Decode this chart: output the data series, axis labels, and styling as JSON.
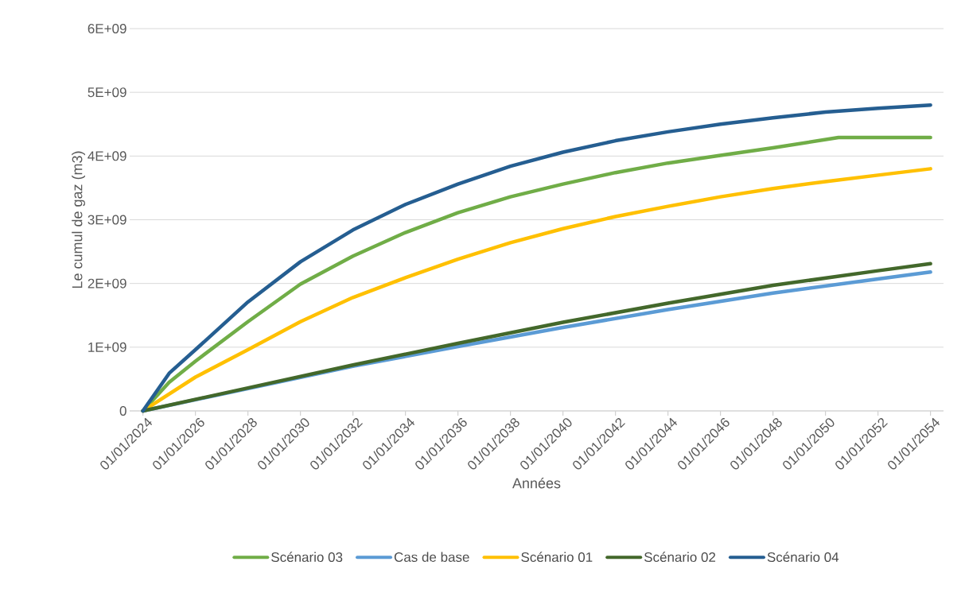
{
  "chart_data": {
    "type": "line",
    "xlabel": "Années",
    "ylabel": "Le cumul de gaz (m3)",
    "xlim": [
      "2023-07-01",
      "2054-07-01"
    ],
    "xticks": [
      {
        "value": "2024-01-01",
        "label": "01/01/2024"
      },
      {
        "value": "2026-01-01",
        "label": "01/01/2026"
      },
      {
        "value": "2028-01-01",
        "label": "01/01/2028"
      },
      {
        "value": "2030-01-01",
        "label": "01/01/2030"
      },
      {
        "value": "2032-01-01",
        "label": "01/01/2032"
      },
      {
        "value": "2034-01-01",
        "label": "01/01/2034"
      },
      {
        "value": "2036-01-01",
        "label": "01/01/2036"
      },
      {
        "value": "2038-01-01",
        "label": "01/01/2038"
      },
      {
        "value": "2040-01-01",
        "label": "01/01/2040"
      },
      {
        "value": "2042-01-01",
        "label": "01/01/2042"
      },
      {
        "value": "2044-01-01",
        "label": "01/01/2044"
      },
      {
        "value": "2046-01-01",
        "label": "01/01/2046"
      },
      {
        "value": "2048-01-01",
        "label": "01/01/2048"
      },
      {
        "value": "2050-01-01",
        "label": "01/01/2050"
      },
      {
        "value": "2052-01-01",
        "label": "01/01/2052"
      },
      {
        "value": "2054-01-01",
        "label": "01/01/2054"
      }
    ],
    "ylim": [
      0,
      6000000000
    ],
    "yticks": [
      0,
      {
        "value": 1000000000,
        "label": "1E+09"
      },
      {
        "value": 2000000000,
        "label": "2E+09"
      },
      {
        "value": 3000000000,
        "label": "3E+09"
      },
      {
        "value": 4000000000,
        "label": "4E+09"
      },
      {
        "value": 5000000000,
        "label": "5E+09"
      },
      {
        "value": 6000000000,
        "label": "6E+09"
      }
    ],
    "grid": "y",
    "legend": "bottom",
    "marker": "none",
    "line_style": "solid",
    "series": [
      {
        "name": "Scénario 03",
        "color": "#70ad47",
        "x": [
          "2024-01-01",
          "2025-01-01",
          "2026-01-01",
          "2028-01-01",
          "2030-01-01",
          "2032-01-01",
          "2034-01-01",
          "2036-01-01",
          "2038-01-01",
          "2040-01-01",
          "2042-01-01",
          "2044-01-01",
          "2046-01-01",
          "2048-01-01",
          "2050-07-01",
          "2054-01-01"
        ],
        "values": [
          0,
          450000000,
          780000000,
          1400000000,
          1990000000,
          2430000000,
          2800000000,
          3110000000,
          3360000000,
          3560000000,
          3740000000,
          3890000000,
          4010000000,
          4130000000,
          4290000000,
          4290000000
        ]
      },
      {
        "name": "Cas de base",
        "color": "#5b9bd5",
        "x": [
          "2024-01-01",
          "2028-01-01",
          "2032-01-01",
          "2036-01-01",
          "2040-01-01",
          "2044-01-01",
          "2048-01-01",
          "2052-01-01",
          "2054-01-01"
        ],
        "values": [
          0,
          350000000,
          700000000,
          1010000000,
          1310000000,
          1590000000,
          1850000000,
          2070000000,
          2180000000
        ]
      },
      {
        "name": "Scénario 01",
        "color": "#ffc000",
        "x": [
          "2024-01-01",
          "2026-01-01",
          "2028-01-01",
          "2030-01-01",
          "2032-01-01",
          "2034-01-01",
          "2036-01-01",
          "2038-01-01",
          "2040-01-01",
          "2042-01-01",
          "2044-01-01",
          "2046-01-01",
          "2048-01-01",
          "2050-01-01",
          "2052-01-01",
          "2054-01-01"
        ],
        "values": [
          0,
          530000000,
          960000000,
          1400000000,
          1780000000,
          2090000000,
          2380000000,
          2640000000,
          2860000000,
          3050000000,
          3210000000,
          3360000000,
          3490000000,
          3600000000,
          3700000000,
          3800000000
        ]
      },
      {
        "name": "Scénario 02",
        "color": "#43682b",
        "x": [
          "2024-01-01",
          "2028-01-01",
          "2032-01-01",
          "2036-01-01",
          "2040-01-01",
          "2044-01-01",
          "2048-01-01",
          "2052-01-01",
          "2054-01-01"
        ],
        "values": [
          0,
          360000000,
          720000000,
          1060000000,
          1390000000,
          1690000000,
          1970000000,
          2200000000,
          2310000000
        ]
      },
      {
        "name": "Scénario 04",
        "color": "#255e91",
        "x": [
          "2024-01-01",
          "2025-01-01",
          "2026-01-01",
          "2028-01-01",
          "2030-01-01",
          "2032-01-01",
          "2034-01-01",
          "2036-01-01",
          "2038-01-01",
          "2040-01-01",
          "2042-01-01",
          "2044-01-01",
          "2046-01-01",
          "2048-01-01",
          "2050-01-01",
          "2052-01-01",
          "2054-01-01"
        ],
        "values": [
          0,
          590000000,
          960000000,
          1710000000,
          2340000000,
          2840000000,
          3240000000,
          3560000000,
          3840000000,
          4060000000,
          4240000000,
          4380000000,
          4500000000,
          4600000000,
          4690000000,
          4750000000,
          4800000000
        ]
      }
    ]
  }
}
